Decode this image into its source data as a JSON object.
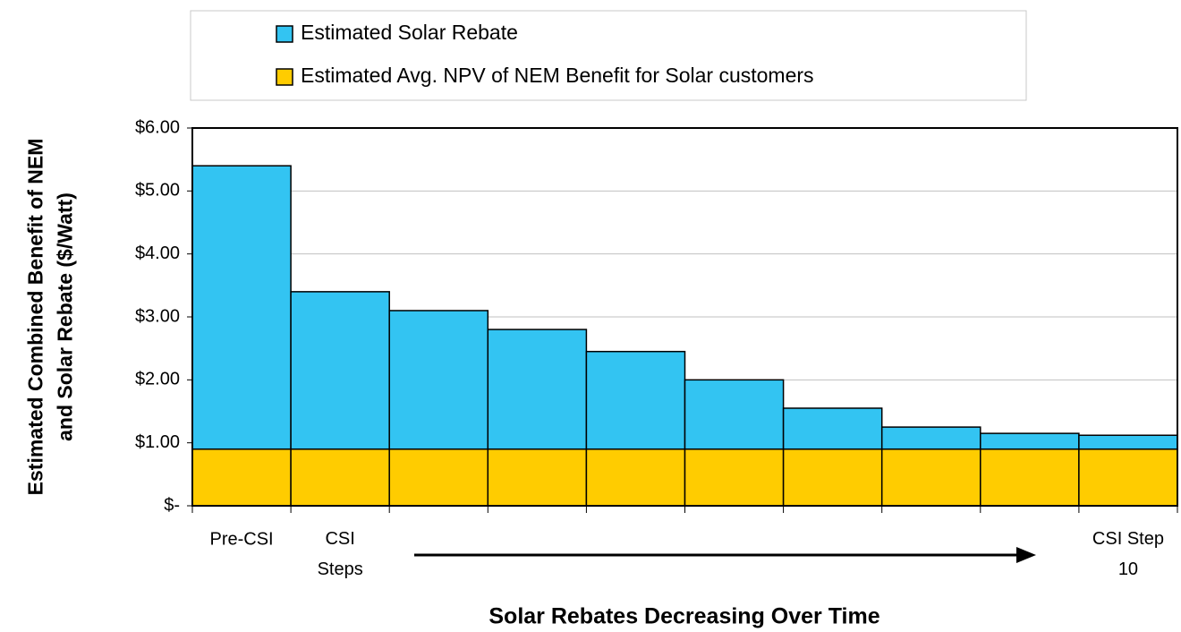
{
  "chart_data": {
    "type": "stacked_bar",
    "x_label": "Solar Rebates Decreasing Over Time",
    "y_label": "Estimated Combined Benefit of NEM\nand Solar Rebate ($/Watt)",
    "categories": [
      "Pre-CSI",
      "CSI\nSteps",
      null,
      null,
      null,
      null,
      null,
      null,
      null,
      "CSI Step\n10"
    ],
    "series": [
      {
        "name": "Estimated Avg. NPV of NEM Benefit for Solar customers",
        "color": "#ffcc00",
        "values": [
          0.9,
          0.9,
          0.9,
          0.9,
          0.9,
          0.9,
          0.9,
          0.9,
          0.9,
          0.9
        ]
      },
      {
        "name": "Estimated Solar Rebate",
        "color": "#33c4f2",
        "values": [
          4.5,
          2.5,
          2.2,
          1.9,
          1.55,
          1.1,
          0.65,
          0.35,
          0.25,
          0.22
        ]
      }
    ],
    "ylim": [
      0,
      6
    ],
    "yticks": [
      {
        "value": 0,
        "label": "$-"
      },
      {
        "value": 1,
        "label": "$1.00"
      },
      {
        "value": 2,
        "label": "$2.00"
      },
      {
        "value": 3,
        "label": "$3.00"
      },
      {
        "value": 4,
        "label": "$4.00"
      },
      {
        "value": 5,
        "label": "$5.00"
      },
      {
        "value": 6,
        "label": "$6.00"
      }
    ],
    "grid": true,
    "legend": "top"
  }
}
